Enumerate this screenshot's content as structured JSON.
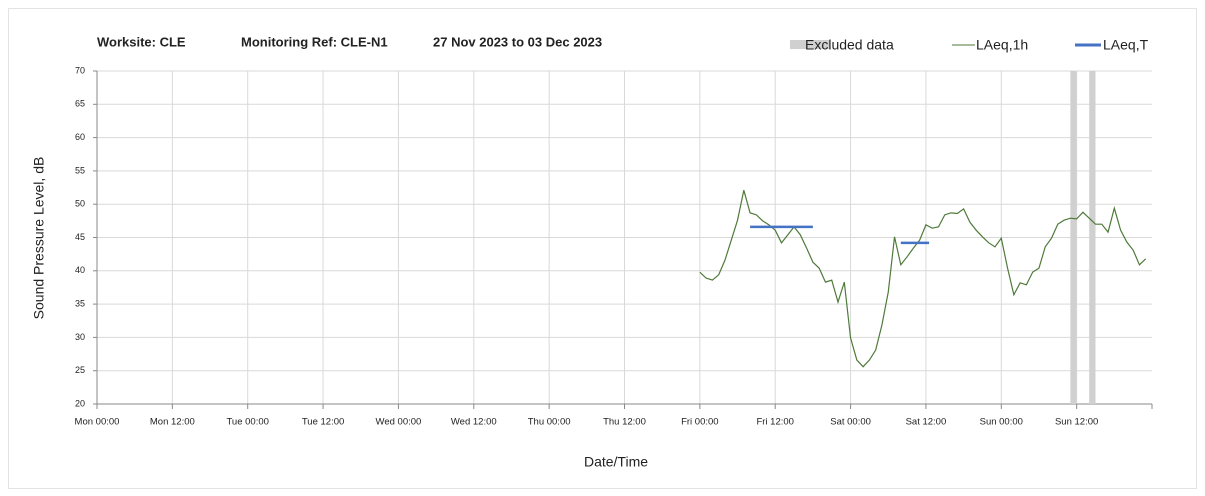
{
  "chart_data": {
    "type": "line",
    "title": [
      "Worksite: CLE",
      "Monitoring Ref: CLE-N1",
      "27 Nov 2023 to 03 Dec 2023"
    ],
    "xlabel": "Date/Time",
    "ylabel": "Sound Pressure Level, dB",
    "xlim": [
      0,
      168
    ],
    "xticks": [
      {
        "value": 0,
        "label": "Mon 00:00"
      },
      {
        "value": 12,
        "label": "Mon 12:00"
      },
      {
        "value": 24,
        "label": "Tue 00:00"
      },
      {
        "value": 36,
        "label": "Tue 12:00"
      },
      {
        "value": 48,
        "label": "Wed 00:00"
      },
      {
        "value": 60,
        "label": "Wed 12:00"
      },
      {
        "value": 72,
        "label": "Thu 00:00"
      },
      {
        "value": 84,
        "label": "Thu 12:00"
      },
      {
        "value": 96,
        "label": "Fri 00:00"
      },
      {
        "value": 108,
        "label": "Fri 12:00"
      },
      {
        "value": 120,
        "label": "Sat 00:00"
      },
      {
        "value": 132,
        "label": "Sat 12:00"
      },
      {
        "value": 144,
        "label": "Sun 00:00"
      },
      {
        "value": 156,
        "label": "Sun 12:00"
      }
    ],
    "ylim": [
      20,
      70
    ],
    "yticks": [
      20,
      25,
      30,
      35,
      40,
      45,
      50,
      55,
      60,
      65,
      70
    ],
    "grid": true,
    "excluded": {
      "name": "Excluded data",
      "color": "#d0d0d0",
      "ranges": [
        [
          155,
          156
        ],
        [
          158,
          159
        ]
      ]
    },
    "series": [
      {
        "name": "LAeq,1h",
        "color": "#4f7a3a",
        "x": [
          96,
          97,
          98,
          99,
          100,
          101,
          102,
          103,
          104,
          105,
          106,
          107,
          108,
          109,
          110,
          111,
          112,
          113,
          114,
          115,
          116,
          117,
          118,
          119,
          120,
          121,
          122,
          123,
          124,
          125,
          126,
          127,
          128,
          129,
          130,
          131,
          132,
          133,
          134,
          135,
          136,
          137,
          138,
          139,
          140,
          141,
          142,
          143,
          144,
          145,
          146,
          147,
          148,
          149,
          150,
          151,
          152,
          153,
          154,
          155,
          156,
          157,
          158,
          159,
          160,
          161,
          162,
          163,
          164,
          165,
          166,
          167
        ],
        "values": [
          39.8,
          38.9,
          38.6,
          39.4,
          41.6,
          44.6,
          47.6,
          52.1,
          48.7,
          48.4,
          47.5,
          46.9,
          46.1,
          44.2,
          45.4,
          46.6,
          45.4,
          43.4,
          41.3,
          40.4,
          38.3,
          38.6,
          35.3,
          38.3,
          29.9,
          26.6,
          25.6,
          26.6,
          28.1,
          31.9,
          36.8,
          45.1,
          40.9,
          42.1,
          43.4,
          44.6,
          46.9,
          46.4,
          46.6,
          48.4,
          48.7,
          48.6,
          49.3,
          47.3,
          46.1,
          45.1,
          44.2,
          43.6,
          44.9,
          40.4,
          36.4,
          38.2,
          37.9,
          39.8,
          40.4,
          43.6,
          44.9,
          47.0,
          47.6,
          47.9,
          47.8,
          48.8,
          47.9,
          47.0,
          47.0,
          45.8,
          49.4,
          46.1,
          44.3,
          43.1,
          40.9,
          41.8
        ]
      },
      {
        "name": "LAeq,T",
        "color": "#4472c4",
        "segments": [
          {
            "x": [
              104,
              114
            ],
            "value": 46.6
          },
          {
            "x": [
              128,
              132.5
            ],
            "value": 44.2
          }
        ]
      }
    ]
  }
}
